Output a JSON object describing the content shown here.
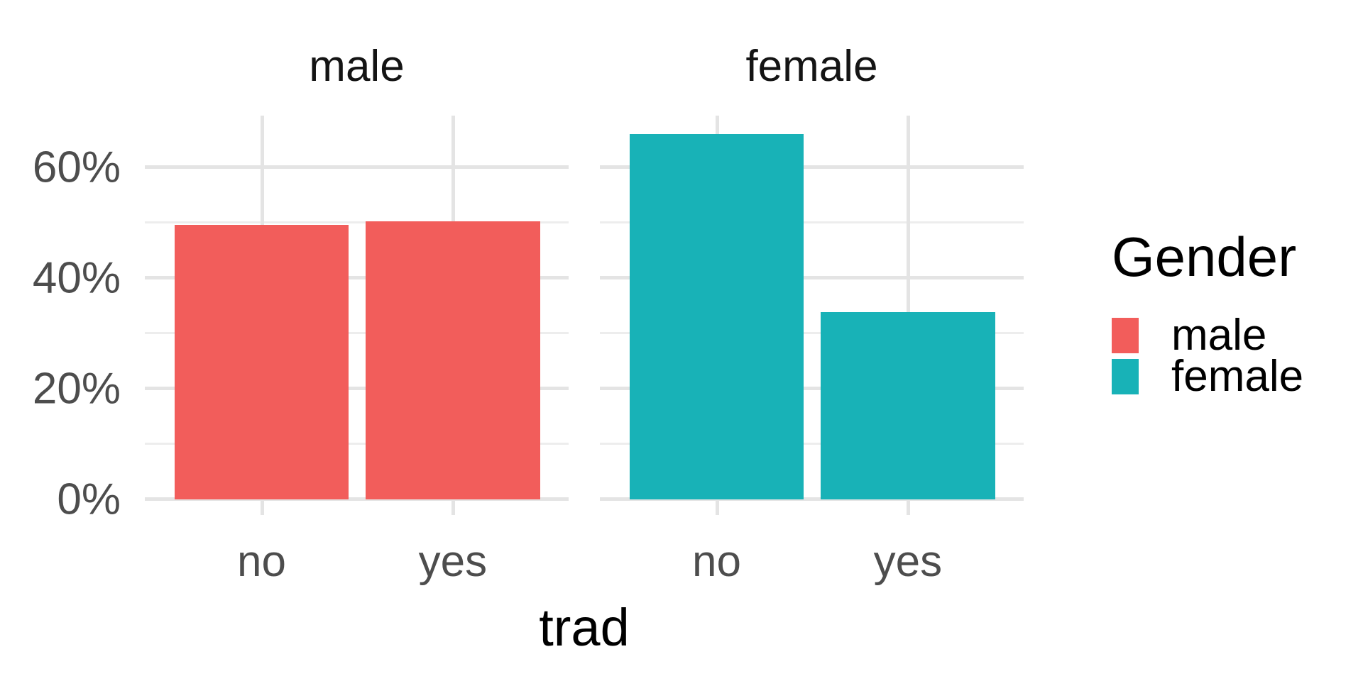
{
  "chart_data": {
    "type": "bar",
    "title": "",
    "xlabel": "trad",
    "ylabel": "",
    "y_ticks": [
      {
        "label": "0%",
        "value": 0
      },
      {
        "label": "20%",
        "value": 20
      },
      {
        "label": "40%",
        "value": 40
      },
      {
        "label": "60%",
        "value": 60
      }
    ],
    "y_minor_ticks": [
      10,
      30,
      50
    ],
    "ylim": [
      0,
      69.4
    ],
    "grid": true,
    "categories": [
      "no",
      "yes"
    ],
    "facets": [
      {
        "label": "male",
        "color": "#f25d5b",
        "categories": [
          "no",
          "yes"
        ],
        "values": [
          49.7,
          50.3
        ]
      },
      {
        "label": "female",
        "color": "#18b2b7",
        "categories": [
          "no",
          "yes"
        ],
        "values": [
          66.1,
          33.9
        ]
      }
    ],
    "legend": {
      "title": "Gender",
      "position": "right",
      "entries": [
        {
          "label": "male",
          "color": "#f25d5b"
        },
        {
          "label": "female",
          "color": "#18b2b7"
        }
      ]
    }
  }
}
